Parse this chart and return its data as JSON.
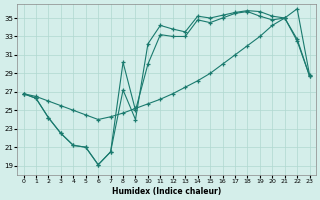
{
  "xlabel": "Humidex (Indice chaleur)",
  "bg_color": "#d4eeea",
  "line_color": "#1a7a6e",
  "grid_color": "#b0d8d0",
  "xlim": [
    -0.5,
    23.5
  ],
  "ylim": [
    18.0,
    36.5
  ],
  "yticks": [
    19,
    21,
    23,
    25,
    27,
    29,
    31,
    33,
    35
  ],
  "xticks": [
    0,
    1,
    2,
    3,
    4,
    5,
    6,
    7,
    8,
    9,
    10,
    11,
    12,
    13,
    14,
    15,
    16,
    17,
    18,
    19,
    20,
    21,
    22,
    23
  ],
  "line1_x": [
    0,
    1,
    2,
    3,
    4,
    5,
    6,
    7,
    8,
    9,
    10,
    11,
    12,
    13,
    14,
    15,
    16,
    17,
    18,
    19,
    20,
    21,
    22,
    23
  ],
  "line1_y": [
    26.8,
    26.3,
    24.2,
    22.5,
    21.2,
    21.0,
    19.1,
    20.5,
    27.2,
    24.0,
    32.2,
    34.2,
    33.8,
    33.5,
    35.2,
    35.0,
    35.3,
    35.6,
    35.8,
    35.7,
    35.2,
    35.0,
    32.7,
    28.7
  ],
  "line2_x": [
    0,
    1,
    2,
    3,
    4,
    5,
    6,
    7,
    8,
    9,
    10,
    11,
    12,
    13,
    14,
    15,
    16,
    17,
    18,
    19,
    20,
    21,
    22,
    23
  ],
  "line2_y": [
    26.8,
    26.3,
    24.2,
    22.5,
    21.2,
    21.0,
    19.1,
    20.5,
    30.2,
    25.0,
    30.0,
    33.2,
    33.0,
    33.0,
    34.8,
    34.5,
    35.0,
    35.5,
    35.7,
    35.2,
    34.8,
    35.0,
    32.5,
    28.7
  ],
  "line3_x": [
    0,
    1,
    2,
    3,
    4,
    5,
    6,
    7,
    8,
    9,
    10,
    11,
    12,
    13,
    14,
    15,
    16,
    17,
    18,
    19,
    20,
    21,
    22,
    23
  ],
  "line3_y": [
    26.8,
    26.5,
    26.0,
    25.5,
    25.0,
    24.5,
    24.0,
    24.3,
    24.7,
    25.2,
    25.7,
    26.2,
    26.8,
    27.5,
    28.2,
    29.0,
    30.0,
    31.0,
    32.0,
    33.0,
    34.2,
    35.0,
    36.0,
    28.8
  ]
}
